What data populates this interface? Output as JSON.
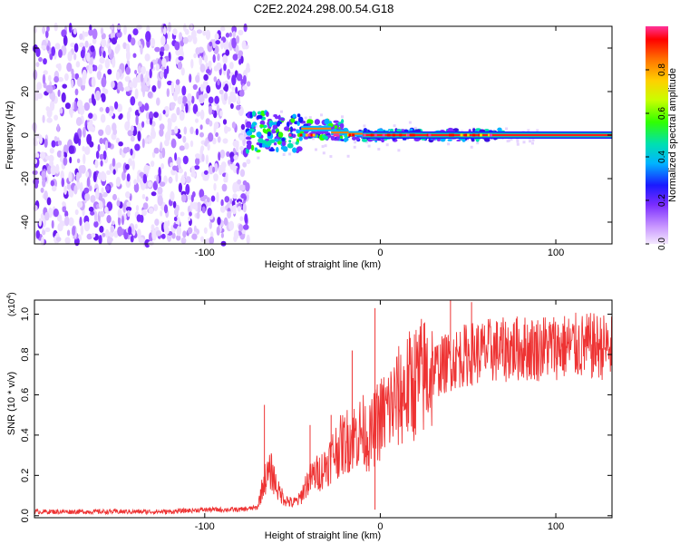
{
  "title": "C2E2.2024.298.00.54.G18",
  "chart_data": [
    {
      "type": "heatmap",
      "xlabel": "Height of straight line (km)",
      "ylabel": "Frequency (Hz)",
      "xlim": [
        -197,
        132
      ],
      "ylim": [
        -50,
        50
      ],
      "x_ticks": [
        -100,
        0,
        100
      ],
      "x_tick_labels": [
        "-100",
        "0",
        "100"
      ],
      "y_ticks": [
        -40,
        -20,
        0,
        20,
        40
      ],
      "y_tick_labels": [
        "-40",
        "-20",
        "0",
        "20",
        "40"
      ],
      "colorbar": {
        "label": "Normalized spectral amplitude",
        "range": [
          0,
          1
        ],
        "ticks": [
          0.0,
          0.2,
          0.4,
          0.6,
          0.8
        ],
        "tick_labels": [
          "0.0",
          "0.2",
          "0.4",
          "0.6",
          "0.8"
        ],
        "colors": [
          "#f2e6ff",
          "#dcb4ff",
          "#8a3cff",
          "#1a1aff",
          "#00c8ff",
          "#00e6a0",
          "#3cff00",
          "#c8ff00",
          "#ffd000",
          "#ff8000",
          "#ff0000",
          "#ff40a0"
        ]
      },
      "signal_line": {
        "y": 0,
        "from_x": -75,
        "to_x": 132
      },
      "noise_region": {
        "from_x": -197,
        "to_x": -75
      }
    },
    {
      "type": "line",
      "xlabel": "Height of straight line (km)",
      "ylabel": "SNR (10 * v/v)",
      "y_multiplier": "(x10",
      "y_multiplier_exponent": "4",
      "y_multiplier_close": ")",
      "xlim": [
        -197,
        132
      ],
      "ylim": [
        -0.01,
        1.07
      ],
      "x_ticks": [
        -100,
        0,
        100
      ],
      "x_tick_labels": [
        "-100",
        "0",
        "100"
      ],
      "y_ticks": [
        0.0,
        0.2,
        0.4,
        0.6,
        0.8,
        1.0
      ],
      "y_tick_labels": [
        "0.0",
        "0.2",
        "0.4",
        "0.6",
        "0.8",
        "1.0"
      ],
      "color": "#ee3333",
      "x": [
        -197,
        -180,
        -160,
        -140,
        -120,
        -100,
        -90,
        -80,
        -70,
        -66,
        -62,
        -58,
        -54,
        -50,
        -46,
        -42,
        -38,
        -34,
        -30,
        -26,
        -22,
        -18,
        -14,
        -10,
        -6,
        -2,
        2,
        6,
        10,
        14,
        18,
        22,
        26,
        30,
        34,
        38,
        42,
        46,
        50,
        54,
        58,
        62,
        66,
        70,
        74,
        78,
        82,
        86,
        90,
        94,
        98,
        102,
        106,
        110,
        114,
        118,
        122,
        126,
        132
      ],
      "y": [
        0.02,
        0.02,
        0.02,
        0.02,
        0.02,
        0.03,
        0.03,
        0.03,
        0.04,
        0.18,
        0.22,
        0.12,
        0.08,
        0.06,
        0.08,
        0.16,
        0.2,
        0.22,
        0.26,
        0.32,
        0.35,
        0.38,
        0.4,
        0.42,
        0.38,
        0.46,
        0.5,
        0.54,
        0.58,
        0.62,
        0.65,
        0.68,
        0.7,
        0.72,
        0.74,
        0.76,
        0.78,
        0.79,
        0.8,
        0.81,
        0.81,
        0.82,
        0.82,
        0.82,
        0.83,
        0.83,
        0.83,
        0.83,
        0.83,
        0.84,
        0.84,
        0.84,
        0.84,
        0.84,
        0.84,
        0.84,
        0.84,
        0.84,
        0.83
      ],
      "spikes": [
        {
          "x": -66,
          "y": 0.55
        },
        {
          "x": -40,
          "y": 0.45
        },
        {
          "x": -28,
          "y": 0.5
        },
        {
          "x": -16,
          "y": 0.82
        },
        {
          "x": -3,
          "y": 1.03
        },
        {
          "x": -3,
          "y": 0.03
        },
        {
          "x": 40,
          "y": 1.07
        },
        {
          "x": 52,
          "y": 1.06
        }
      ]
    }
  ]
}
